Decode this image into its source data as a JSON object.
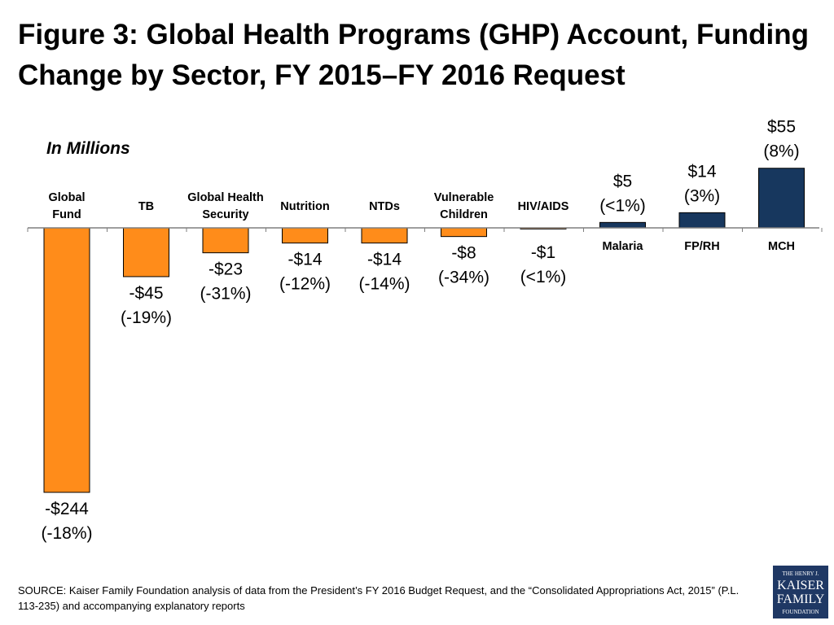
{
  "title": "Figure 3: Global Health Programs (GHP) Account, Funding Change by Sector, FY 2015–FY 2016 Request",
  "units_label": "In Millions",
  "source": "SOURCE: Kaiser Family Foundation analysis of data from the President’s FY 2016 Budget Request, and the “Consolidated Appropriations Act, 2015” (P.L. 113-235) and accompanying explanatory reports",
  "logo": {
    "line1": "THE HENRY J.",
    "line2": "KAISER",
    "line3": "FAMILY",
    "line4": "FOUNDATION"
  },
  "colors": {
    "negative": "#FF8C1A",
    "positive": "#17375E",
    "axis": "#7F7F7F"
  },
  "chart_data": {
    "type": "bar",
    "title": "Figure 3: Global Health Programs (GHP) Account, Funding Change by Sector, FY 2015–FY 2016 Request",
    "units": "In Millions",
    "categories": [
      "Global Fund",
      "TB",
      "Global Health Security",
      "Nutrition",
      "NTDs",
      "Vulnerable Children",
      "HIV/AIDS",
      "Malaria",
      "FP/RH",
      "MCH"
    ],
    "values": [
      -244,
      -45,
      -23,
      -14,
      -14,
      -8,
      -1,
      5,
      14,
      55
    ],
    "value_labels": [
      "-$244",
      "-$45",
      "-$23",
      "-$14",
      "-$14",
      "-$8",
      "-$1",
      "$5",
      "$14",
      "$55"
    ],
    "percent_labels": [
      "(-18%)",
      "(-19%)",
      "(-31%)",
      "(-12%)",
      "(-14%)",
      "(-34%)",
      "(<1%)",
      "(<1%)",
      "(3%)",
      "(8%)"
    ],
    "category_label_lines": [
      [
        "Global",
        "Fund"
      ],
      [
        "TB"
      ],
      [
        "Global Health",
        "Security"
      ],
      [
        "Nutrition"
      ],
      [
        "NTDs"
      ],
      [
        "Vulnerable",
        "Children"
      ],
      [
        "HIV/AIDS"
      ],
      [
        "Malaria"
      ],
      [
        "FP/RH"
      ],
      [
        "MCH"
      ]
    ],
    "grid": false,
    "legend": "none"
  }
}
